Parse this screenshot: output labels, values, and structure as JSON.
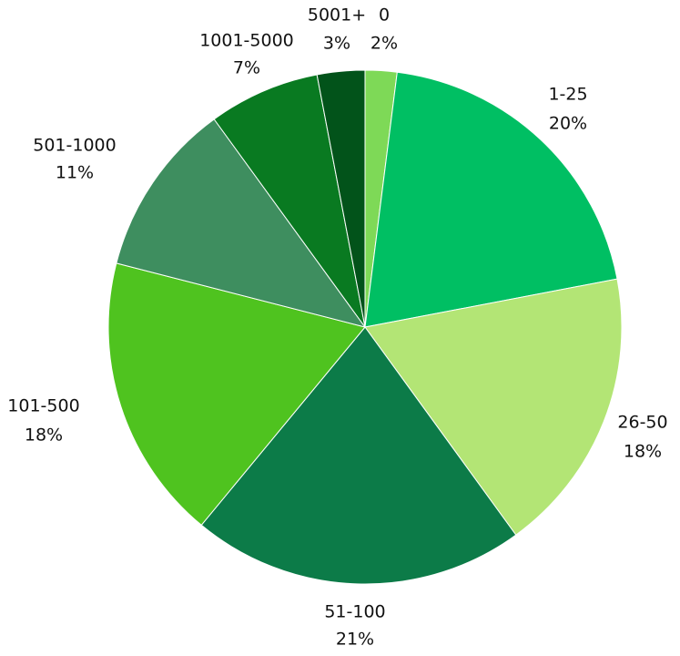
{
  "chart_data": {
    "type": "pie",
    "start_angle_deg": 0,
    "direction": "clockwise",
    "slices": [
      {
        "label": "0",
        "value": 2,
        "value_label": "2%",
        "color": "#7ed957"
      },
      {
        "label": "1-25",
        "value": 20,
        "value_label": "20%",
        "color": "#00bf63"
      },
      {
        "label": "26-50",
        "value": 18,
        "value_label": "18%",
        "color": "#b3e575"
      },
      {
        "label": "51-100",
        "value": 21,
        "value_label": "21%",
        "color": "#0c7b48"
      },
      {
        "label": "101-500",
        "value": 18,
        "value_label": "18%",
        "color": "#4fc31f"
      },
      {
        "label": "501-1000",
        "value": 11,
        "value_label": "11%",
        "color": "#3e8e5f"
      },
      {
        "label": "1001-5000",
        "value": 7,
        "value_label": "7%",
        "color": "#097a21"
      },
      {
        "label": "5001+",
        "value": 3,
        "value_label": "3%",
        "color": "#02531a"
      }
    ]
  }
}
